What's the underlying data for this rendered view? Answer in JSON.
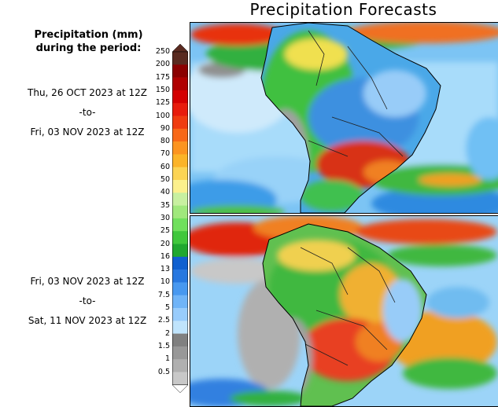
{
  "title": "Precipitation Forecasts",
  "legend": {
    "heading_line1": "Precipitation (mm)",
    "heading_line2": "during the period:",
    "levels": [
      "250",
      "200",
      "175",
      "150",
      "125",
      "100",
      "90",
      "80",
      "70",
      "60",
      "50",
      "40",
      "35",
      "30",
      "25",
      "20",
      "16",
      "13",
      "10",
      "7.5",
      "5",
      "2.5",
      "2",
      "1.5",
      "1",
      "0.5"
    ],
    "colors": [
      "#5a2a20",
      "#8b0000",
      "#b00000",
      "#d40000",
      "#e81c0c",
      "#f03c10",
      "#f86818",
      "#fc9420",
      "#fcb428",
      "#fcd454",
      "#fcf08c",
      "#c8f0a0",
      "#a0e87c",
      "#70e05c",
      "#40c83c",
      "#20a830",
      "#1060d0",
      "#2878e0",
      "#4898f0",
      "#70b4f8",
      "#98ccfc",
      "#c0e4fc",
      "#808080",
      "#989898",
      "#b0b0b0",
      "#c8c8c8"
    ]
  },
  "periods": [
    {
      "start": "Thu, 26 OCT 2023 at 12Z",
      "sep": "-to-",
      "end": "Fri, 03 NOV 2023 at 12Z"
    },
    {
      "start": "Fri, 03 NOV 2023 at 12Z",
      "sep": "-to-",
      "end": "Sat, 11 NOV 2023 at 12Z"
    }
  ]
}
